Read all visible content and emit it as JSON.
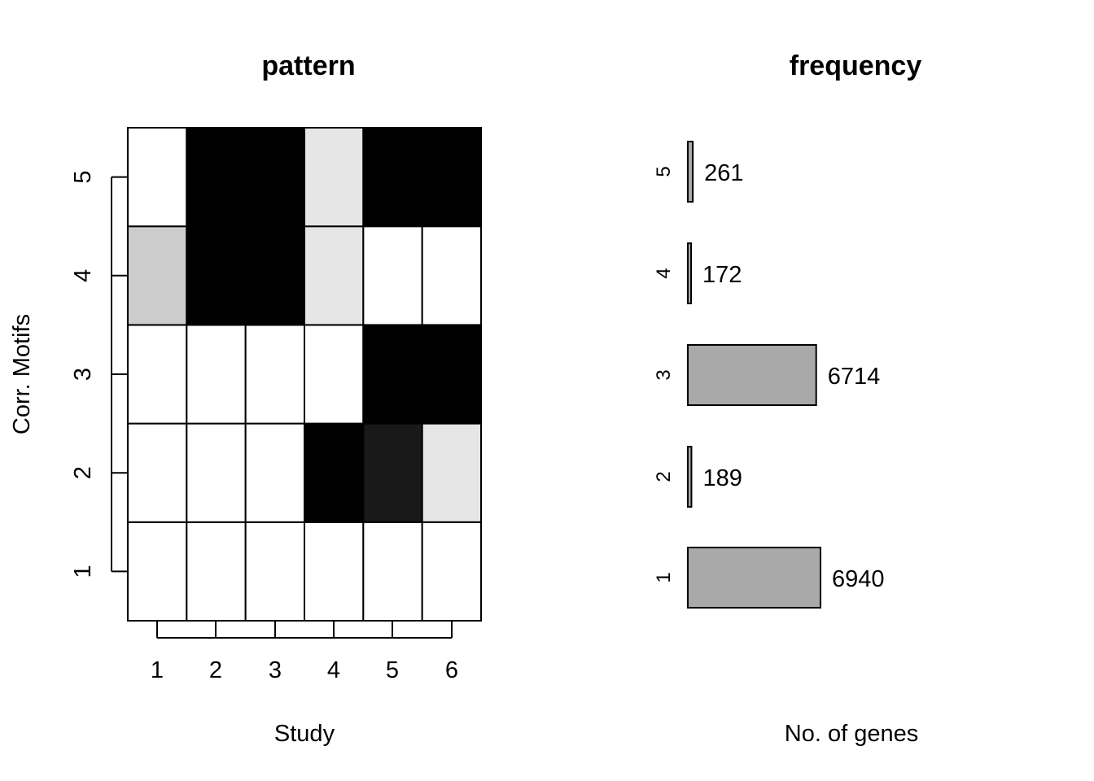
{
  "charts": {
    "pattern": {
      "type": "heatmap",
      "title": "pattern",
      "xlabel": "Study",
      "ylabel": "Corr. Motifs",
      "x_ticks": [
        "1",
        "2",
        "3",
        "4",
        "5",
        "6"
      ],
      "y_ticks": [
        "1",
        "2",
        "3",
        "4",
        "5"
      ],
      "rows": [
        {
          "motif": "1",
          "values": [
            0.0,
            0.0,
            0.0,
            0.0,
            0.0,
            0.0
          ]
        },
        {
          "motif": "2",
          "values": [
            0.0,
            0.0,
            0.0,
            1.0,
            0.9,
            0.1
          ]
        },
        {
          "motif": "3",
          "values": [
            0.0,
            0.0,
            0.0,
            0.0,
            1.0,
            1.0
          ]
        },
        {
          "motif": "4",
          "values": [
            0.2,
            1.0,
            1.0,
            0.1,
            0.0,
            0.0
          ]
        },
        {
          "motif": "5",
          "values": [
            0.0,
            1.0,
            1.0,
            0.1,
            1.0,
            1.0
          ]
        }
      ],
      "scale": "grayscale 0 = white, 1 = black"
    },
    "frequency": {
      "type": "bar",
      "orientation": "horizontal",
      "title": "frequency",
      "xlabel": "No. of genes",
      "categories": [
        "1",
        "2",
        "3",
        "4",
        "5"
      ],
      "values": [
        6940,
        189,
        6714,
        172,
        261
      ],
      "bar_color": "#a9a9a9",
      "labels": [
        "6940",
        "189",
        "6714",
        "172",
        "261"
      ]
    }
  }
}
